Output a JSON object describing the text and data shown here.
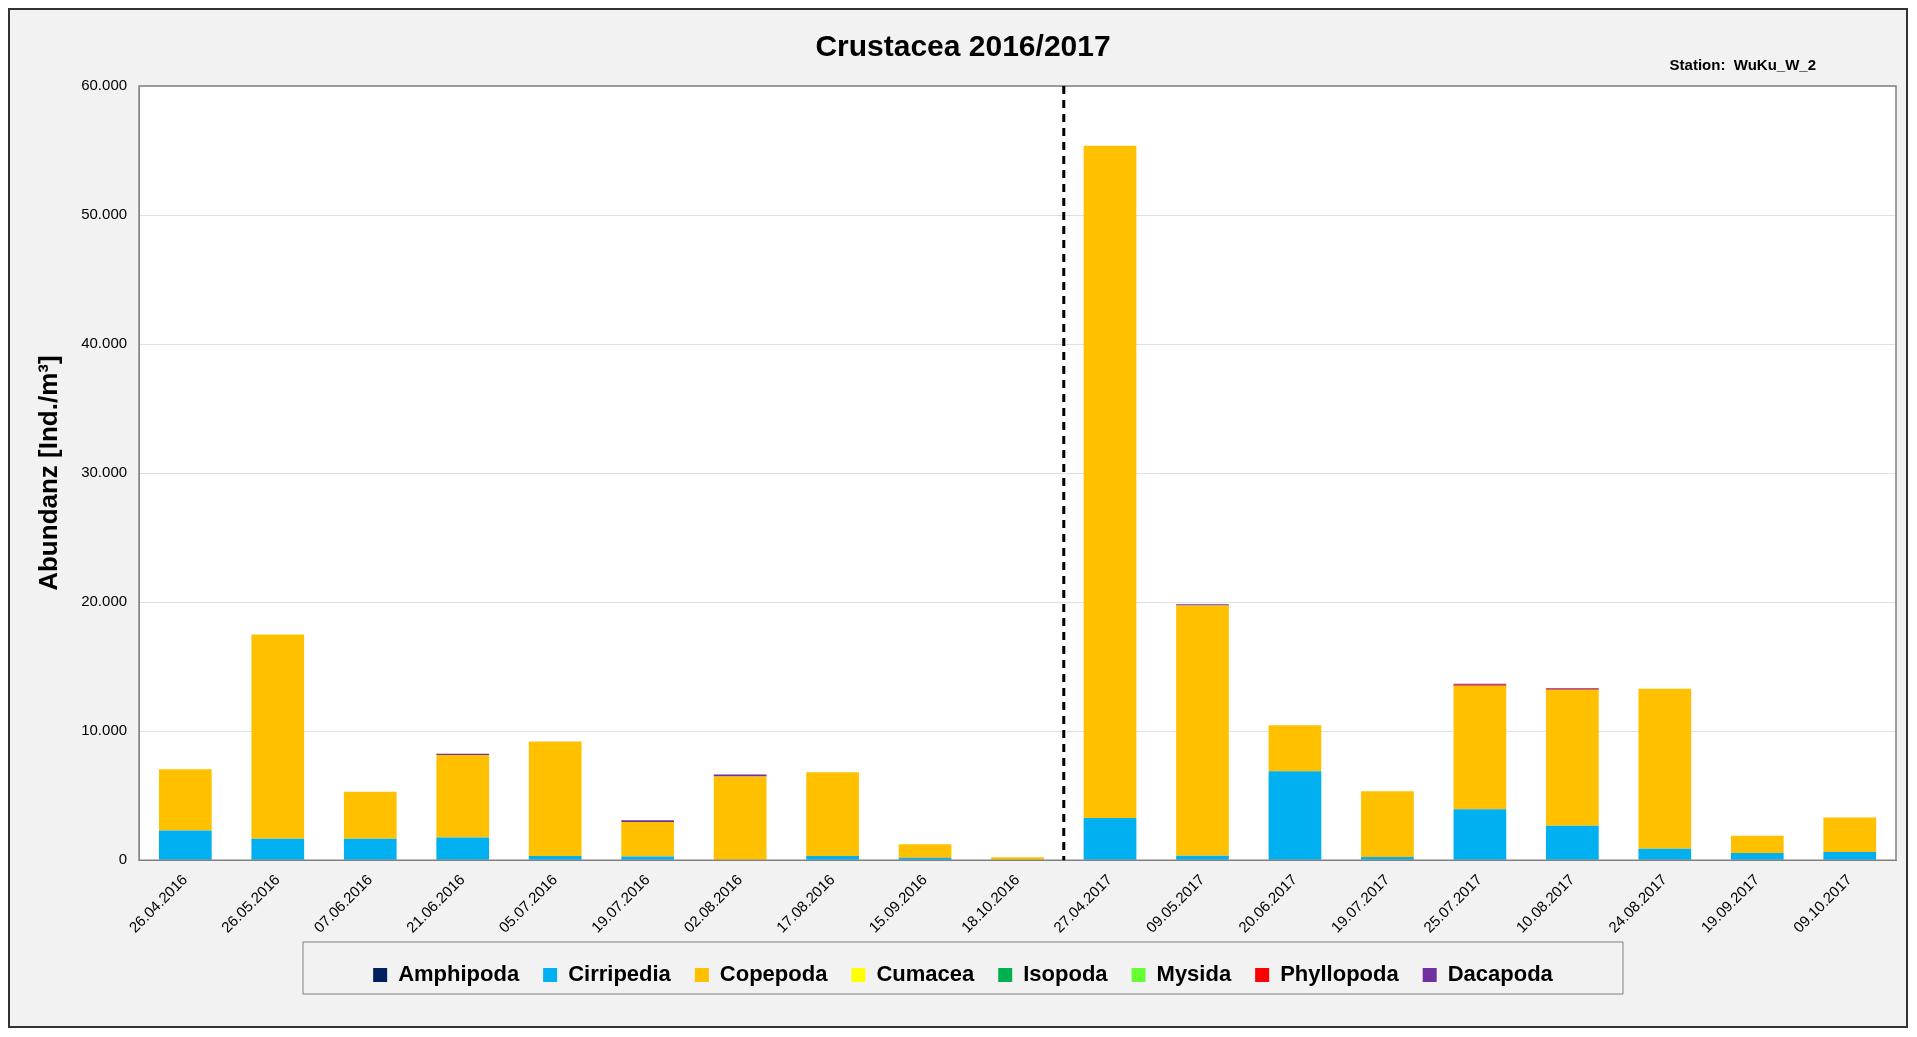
{
  "chart_data": {
    "type": "bar",
    "title": "Crustacea 2016/2017",
    "ylabel": "Abundanz [Ind./m³]",
    "annotations": [
      "Station:  WuKu_W_2"
    ],
    "categories": [
      "26.04.2016",
      "26.05.2016",
      "07.06.2016",
      "21.06.2016",
      "05.07.2016",
      "19.07.2016",
      "02.08.2016",
      "17.08.2016",
      "15.09.2016",
      "18.10.2016",
      "27.04.2017",
      "09.05.2017",
      "20.06.2017",
      "19.07.2017",
      "25.07.2017",
      "10.08.2017",
      "24.08.2017",
      "19.09.2017",
      "09.10.2017"
    ],
    "stacked": true,
    "series": [
      {
        "name": "Amphipoda",
        "color": "#002060",
        "values": [
          0,
          0,
          0,
          0,
          0,
          0,
          0,
          0,
          0,
          0,
          0,
          0,
          0,
          0,
          0,
          0,
          0,
          0,
          0
        ]
      },
      {
        "name": "Cirripedia",
        "color": "#00b0f0",
        "values": [
          2300,
          1660,
          1660,
          1750,
          320,
          280,
          null,
          320,
          180,
          null,
          3260,
          340,
          6900,
          250,
          3940,
          2670,
          890,
          550,
          630
        ]
      },
      {
        "name": "Copepoda",
        "color": "#ffc000",
        "values": [
          4750,
          15840,
          3640,
          6400,
          8880,
          2670,
          6490,
          6500,
          1060,
          230,
          52100,
          19400,
          3550,
          5100,
          9580,
          10540,
          12400,
          1350,
          2670
        ]
      },
      {
        "name": "Cumacea",
        "color": "#ffff00",
        "values": [
          0,
          0,
          0,
          0,
          0,
          0,
          0,
          0,
          0,
          0,
          0,
          0,
          0,
          0,
          0,
          0,
          0,
          0,
          0
        ]
      },
      {
        "name": "Isopoda",
        "color": "#00b050",
        "values": [
          0,
          0,
          0,
          0,
          0,
          0,
          0,
          0,
          0,
          0,
          0,
          0,
          0,
          0,
          0,
          0,
          0,
          0,
          0
        ]
      },
      {
        "name": "Mysida",
        "color": "#66ff33",
        "values": [
          0,
          0,
          0,
          0,
          0,
          0,
          0,
          0,
          0,
          0,
          0,
          0,
          0,
          0,
          0,
          0,
          0,
          0,
          0
        ]
      },
      {
        "name": "Phyllopoda",
        "color": "#ff0000",
        "values": [
          0,
          0,
          0,
          0,
          0,
          0,
          0,
          0,
          0,
          0,
          0,
          0,
          0,
          0,
          80,
          60,
          0,
          0,
          0
        ]
      },
      {
        "name": "Dacapoda",
        "color": "#7030a0",
        "values": [
          0,
          0,
          0,
          100,
          0,
          150,
          150,
          0,
          0,
          0,
          0,
          100,
          0,
          0,
          80,
          60,
          0,
          0,
          0
        ]
      }
    ],
    "ylim": [
      0,
      60000
    ],
    "yticks": [
      {
        "value": 0,
        "label": "0"
      },
      {
        "value": 10000,
        "label": "10.000"
      },
      {
        "value": 20000,
        "label": "20.000"
      },
      {
        "value": 30000,
        "label": "30.000"
      },
      {
        "value": 40000,
        "label": "40.000"
      },
      {
        "value": 50000,
        "label": "50.000"
      },
      {
        "value": 60000,
        "label": "60.000"
      }
    ],
    "grid": "y",
    "legend": "bottom",
    "ref_lines": [
      {
        "axis": "x",
        "value": "27.04.2017",
        "color": "#000000",
        "line_style": "dashed"
      }
    ]
  }
}
